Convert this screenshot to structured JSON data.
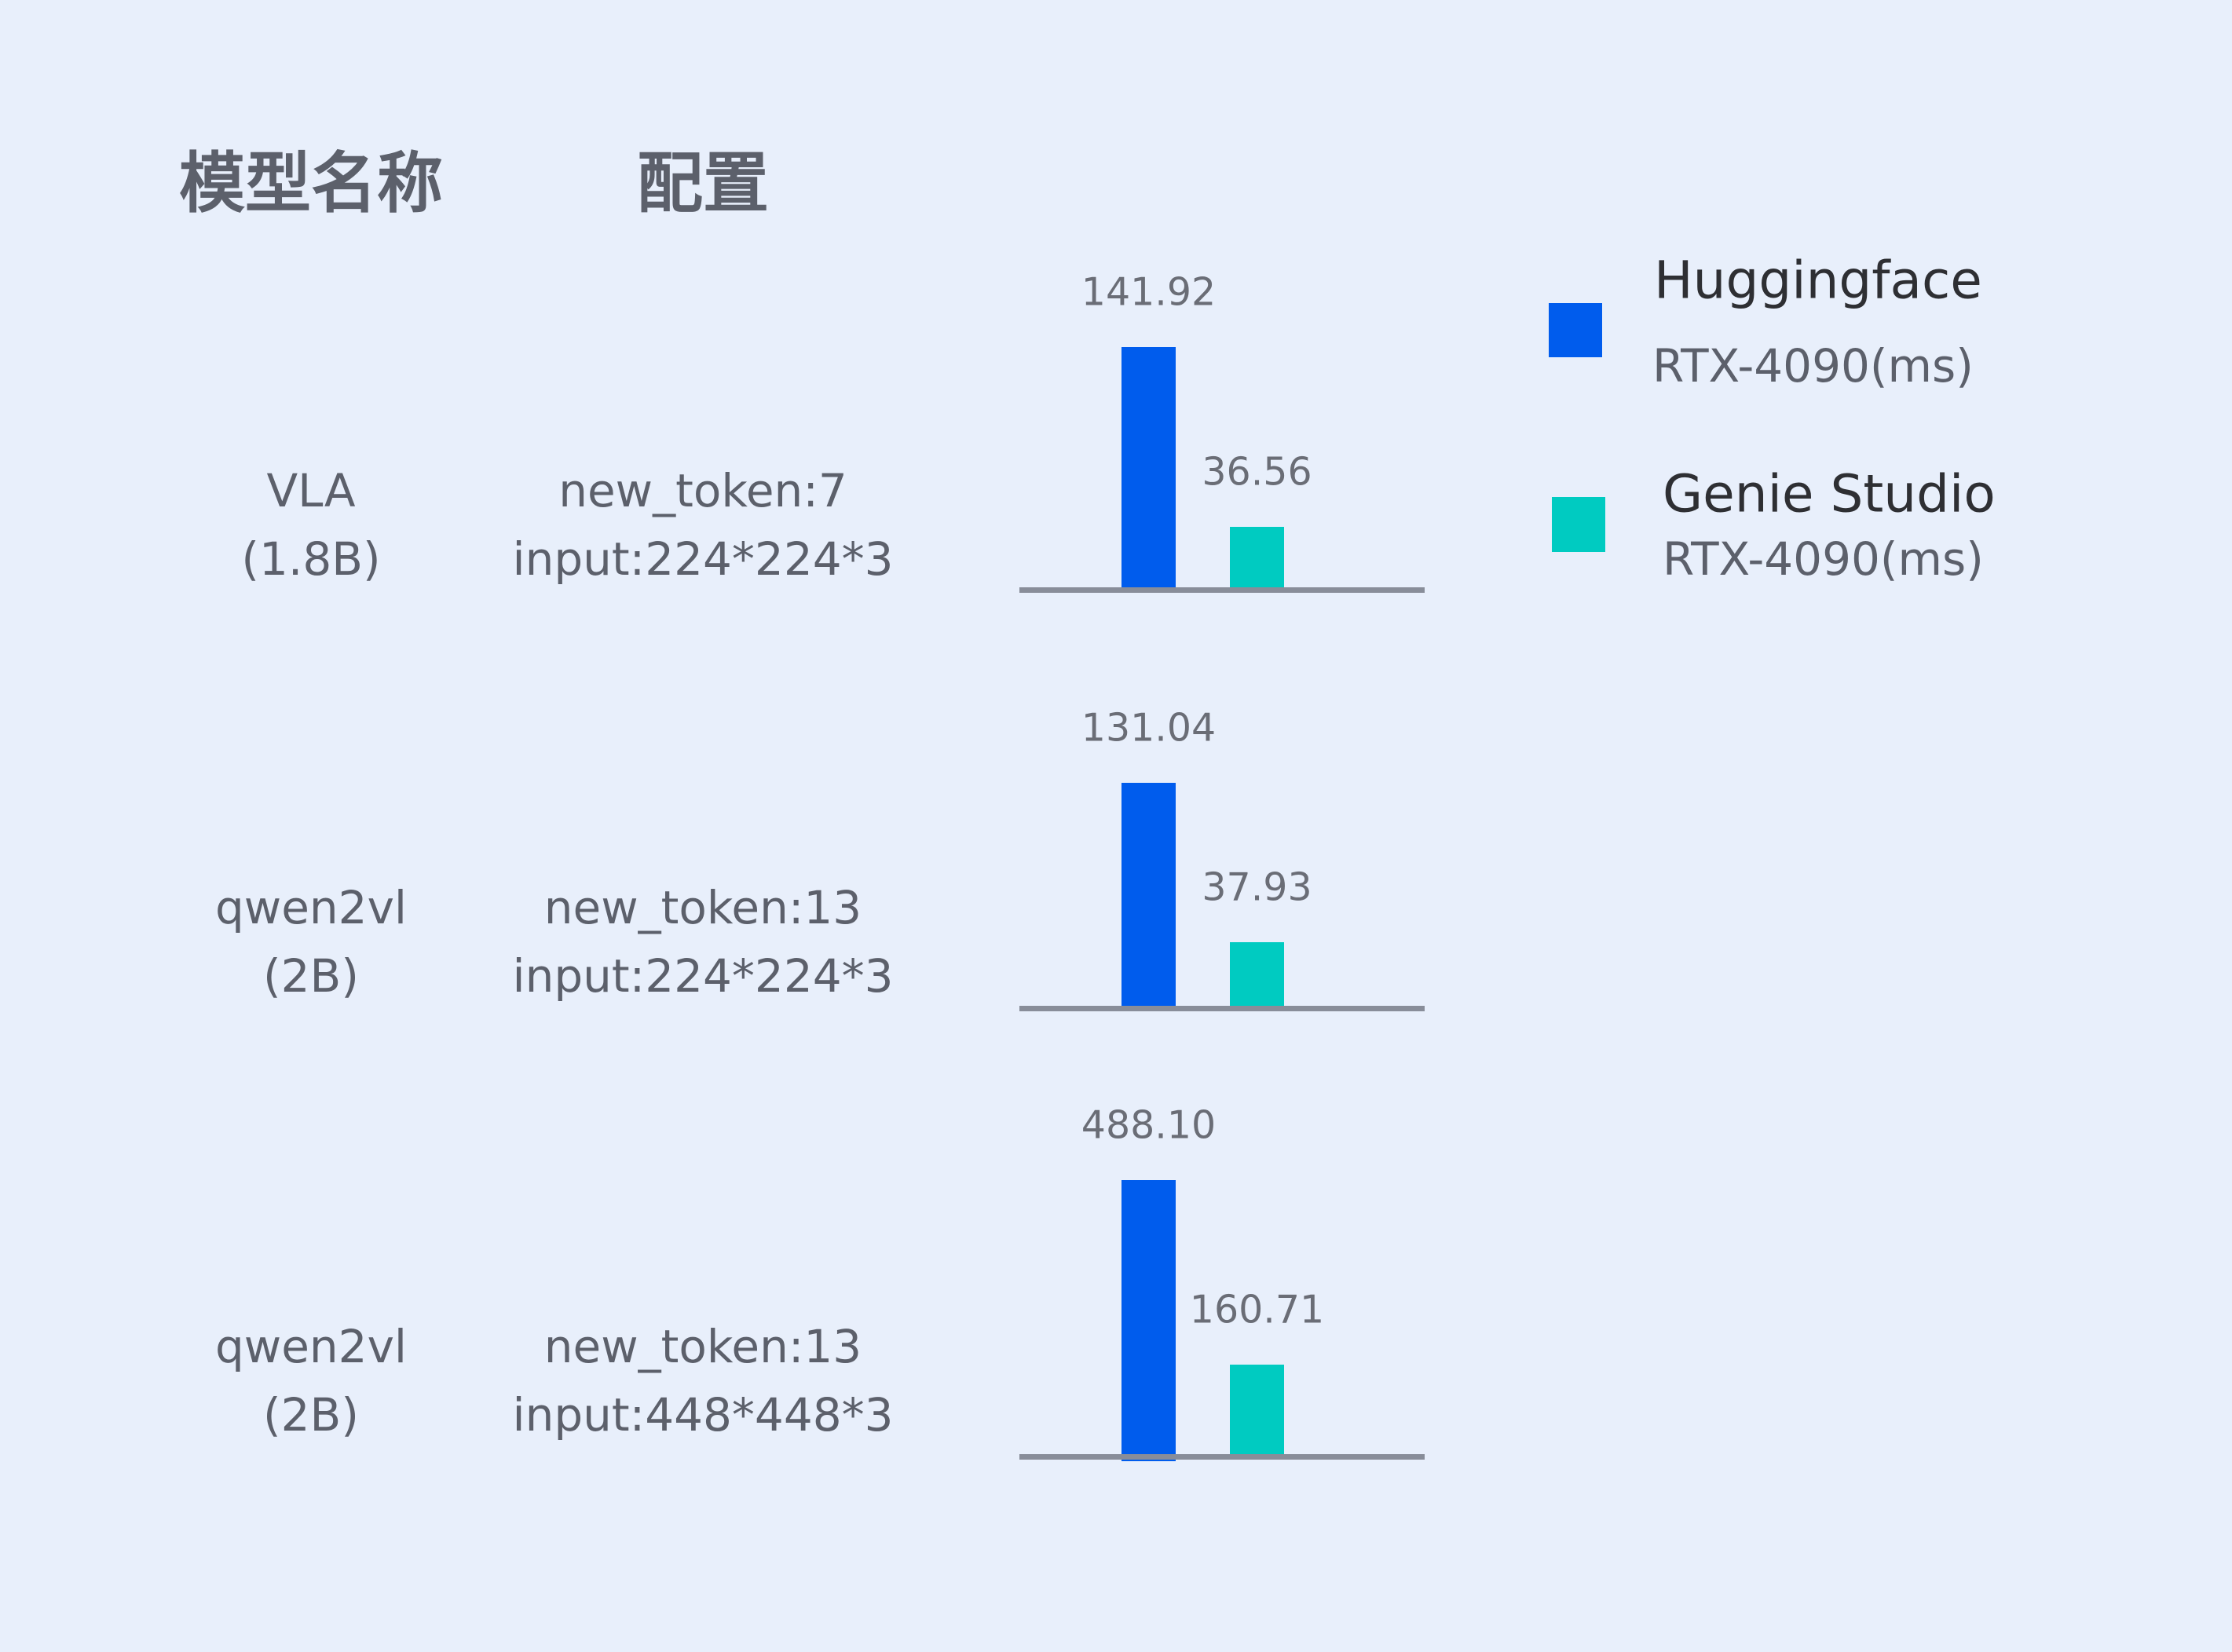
{
  "headers": {
    "model": "模型名称",
    "config": "配置"
  },
  "colors": {
    "huggingface": "#005ced",
    "genie": "#00cbc1",
    "axis": "#888d99"
  },
  "legend": [
    {
      "title": "Huggingface",
      "subtitle": "RTX-4090(ms)"
    },
    {
      "title": "Genie Studio",
      "subtitle": "RTX-4090(ms)"
    }
  ],
  "chart_data": {
    "type": "bar",
    "categories": [
      "VLA (1.8B)",
      "qwen2vl (2B)",
      "qwen2vl (2B)"
    ],
    "series": [
      {
        "name": "Huggingface RTX-4090(ms)",
        "values": [
          141.92,
          131.04,
          488.1
        ]
      },
      {
        "name": "Genie Studio RTX-4090(ms)",
        "values": [
          36.56,
          37.93,
          160.71
        ]
      }
    ],
    "value_labels": [
      [
        "141.92",
        "36.56"
      ],
      [
        "131.04",
        "37.93"
      ],
      [
        "488.10",
        "160.71"
      ]
    ],
    "rows": [
      {
        "model": "VLA",
        "size": "(1.8B)",
        "config1": "new_token:7",
        "config2": "input:224*224*3"
      },
      {
        "model": "qwen2vl",
        "size": "(2B)",
        "config1": "new_token:13",
        "config2": "input:224*224*3"
      },
      {
        "model": "qwen2vl",
        "size": "(2B)",
        "config1": "new_token:13",
        "config2": "input:448*448*3"
      }
    ],
    "legend_position": "right",
    "grid": false
  }
}
